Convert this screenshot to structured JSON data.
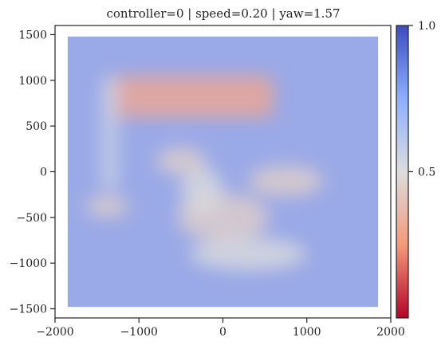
{
  "chart_data": {
    "type": "heatmap",
    "title": "controller=0 | speed=0.20 | yaw=1.57",
    "xlabel": "",
    "ylabel": "",
    "xlim": [
      -2000,
      2000
    ],
    "ylim": [
      -1600,
      1600
    ],
    "x_extent": [
      -1850,
      1850
    ],
    "y_extent": [
      -1480,
      1480
    ],
    "x_ticks": [
      -2000,
      -1000,
      0,
      1000,
      2000
    ],
    "x_tick_labels": [
      "−2000",
      "−1000",
      "0",
      "1000",
      "2000"
    ],
    "y_ticks": [
      1500,
      1000,
      500,
      0,
      -500,
      -1000,
      -1500
    ],
    "y_tick_labels": [
      "1500",
      "1000",
      "500",
      "0",
      "−500",
      "−1000",
      "−1500"
    ],
    "colormap": "coolwarm_r",
    "background_value": 0.9,
    "colorbar": {
      "range": [
        0.0,
        1.0
      ],
      "ticks": [
        1.0,
        0.5
      ],
      "tick_labels": [
        "1.0",
        "0.5"
      ]
    },
    "low_value_regions": [
      {
        "shape": "rect",
        "x": [
          -1350,
          600
        ],
        "y": [
          600,
          1050
        ],
        "value": 0.3
      },
      {
        "shape": "rect",
        "x": [
          -1450,
          -1250
        ],
        "y": [
          -200,
          1050
        ],
        "value": 0.55
      },
      {
        "shape": "ellipse",
        "cx": -1380,
        "cy": -380,
        "rx": 260,
        "ry": 120,
        "value": 0.45
      },
      {
        "shape": "ellipse",
        "cx": -500,
        "cy": 120,
        "rx": 300,
        "ry": 150,
        "value": 0.45
      },
      {
        "shape": "ellipse",
        "cx": 750,
        "cy": -100,
        "rx": 450,
        "ry": 170,
        "value": 0.45
      },
      {
        "shape": "ellipse",
        "cx": 0,
        "cy": -500,
        "rx": 550,
        "ry": 260,
        "value": 0.45
      },
      {
        "shape": "ellipse",
        "cx": 300,
        "cy": -900,
        "rx": 700,
        "ry": 180,
        "value": 0.5
      },
      {
        "shape": "ellipse",
        "cx": -250,
        "cy": -200,
        "rx": 250,
        "ry": 250,
        "value": 0.5
      }
    ]
  }
}
